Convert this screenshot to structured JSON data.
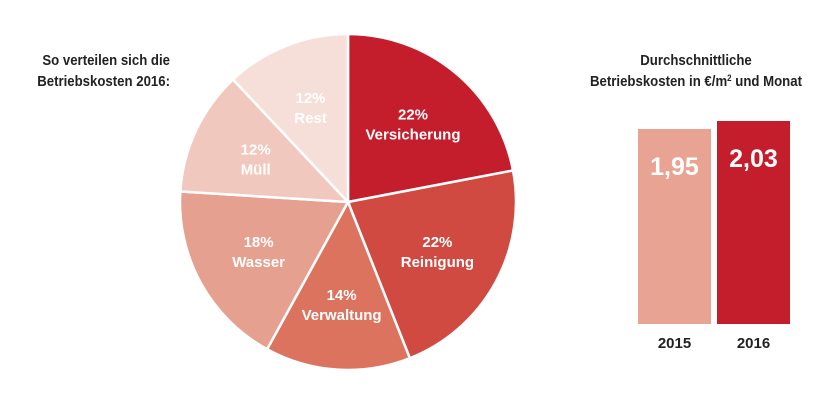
{
  "chart_data": [
    {
      "type": "pie",
      "title_lines": [
        "So verteilen sich die",
        "Betriebskosten 2016:"
      ],
      "unit": "%",
      "slices": [
        {
          "label": "Versicherung",
          "value": 22,
          "display": "22%",
          "color": "#c41e2d"
        },
        {
          "label": "Reinigung",
          "value": 22,
          "display": "22%",
          "color": "#d14a42"
        },
        {
          "label": "Verwaltung",
          "value": 14,
          "display": "14%",
          "color": "#dc735f"
        },
        {
          "label": "Wasser",
          "value": 18,
          "display": "18%",
          "color": "#e6a090"
        },
        {
          "label": "Müll",
          "value": 12,
          "display": "12%",
          "color": "#f0c8bd"
        },
        {
          "label": "Rest",
          "value": 12,
          "display": "12%",
          "color": "#f6dfd9"
        }
      ]
    },
    {
      "type": "bar",
      "title_line1": "Durchschnittliche",
      "title_line2_pre": "Betriebskosten in €/m",
      "title_sup": "2",
      "title_line2_post": " und Monat",
      "categories": [
        "2015",
        "2016"
      ],
      "values": [
        1.95,
        2.03
      ],
      "display_values": [
        "1,95",
        "2,03"
      ],
      "colors": [
        "#e8a392",
        "#c41e2d"
      ]
    }
  ]
}
